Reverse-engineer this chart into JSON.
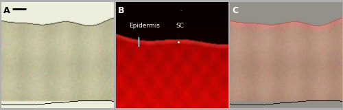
{
  "panel_labels": [
    "A",
    "B",
    "C"
  ],
  "label_epidermis": "Epidermis",
  "label_sc": "SC",
  "text_fontsize": 6.5,
  "panel_label_fontsize": 9,
  "figsize": [
    5.0,
    1.6
  ],
  "dpi": 100,
  "fig_bg": "#b0b0b0",
  "panel_gap_color": "#b0b0b0",
  "A_bg": [
    238,
    238,
    220
  ],
  "A_tissue_base": [
    195,
    192,
    158
  ],
  "A_tissue_dark": [
    170,
    165,
    130
  ],
  "A_scale_bar_color": "black",
  "B_bg": [
    8,
    0,
    0
  ],
  "B_tissue_bright": [
    210,
    10,
    5
  ],
  "B_tissue_dim": [
    100,
    5,
    3
  ],
  "C_bg": [
    148,
    145,
    138
  ],
  "C_tissue_base": [
    185,
    148,
    128
  ],
  "C_tissue_dark": [
    155,
    118,
    98
  ],
  "border_color": "#777777"
}
